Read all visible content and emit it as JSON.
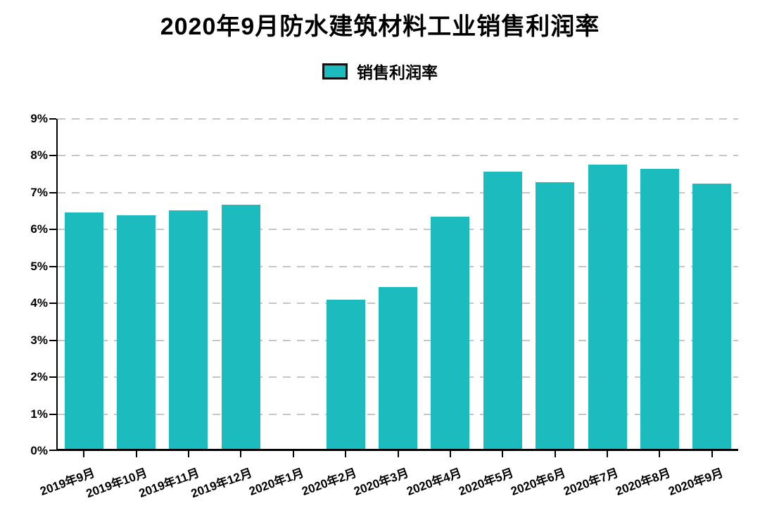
{
  "page": {
    "background_color": "#ffffff"
  },
  "colors": {
    "bar_fill": "#1CBCBE",
    "legend_swatch_fill": "#1CBCBE",
    "legend_swatch_border": "#111111",
    "axis_line": "#000000",
    "gridline": "#c6c6c6",
    "text": "#000000"
  },
  "chart_data": {
    "type": "bar",
    "title": "2020年9月防水建筑材料工业销售利润率",
    "series_name": "销售利润率",
    "legend_position": "top",
    "categories": [
      "2019年9月",
      "2019年10月",
      "2019年11月",
      "2019年12月",
      "2020年1月",
      "2020年2月",
      "2020年3月",
      "2020年4月",
      "2020年5月",
      "2020年6月",
      "2020年7月",
      "2020年8月",
      "2020年9月"
    ],
    "values": [
      6.46,
      6.39,
      6.52,
      6.68,
      null,
      4.1,
      4.45,
      6.35,
      7.57,
      7.28,
      7.77,
      7.65,
      7.24
    ],
    "unit": "%",
    "ylim": [
      0,
      9
    ],
    "ytick_step": 1,
    "ytick_labels": [
      "0%",
      "1%",
      "2%",
      "3%",
      "4%",
      "5%",
      "6%",
      "7%",
      "8%",
      "9%"
    ],
    "grid": true,
    "gridline_style": "dashed",
    "xlabel": "",
    "ylabel": ""
  }
}
